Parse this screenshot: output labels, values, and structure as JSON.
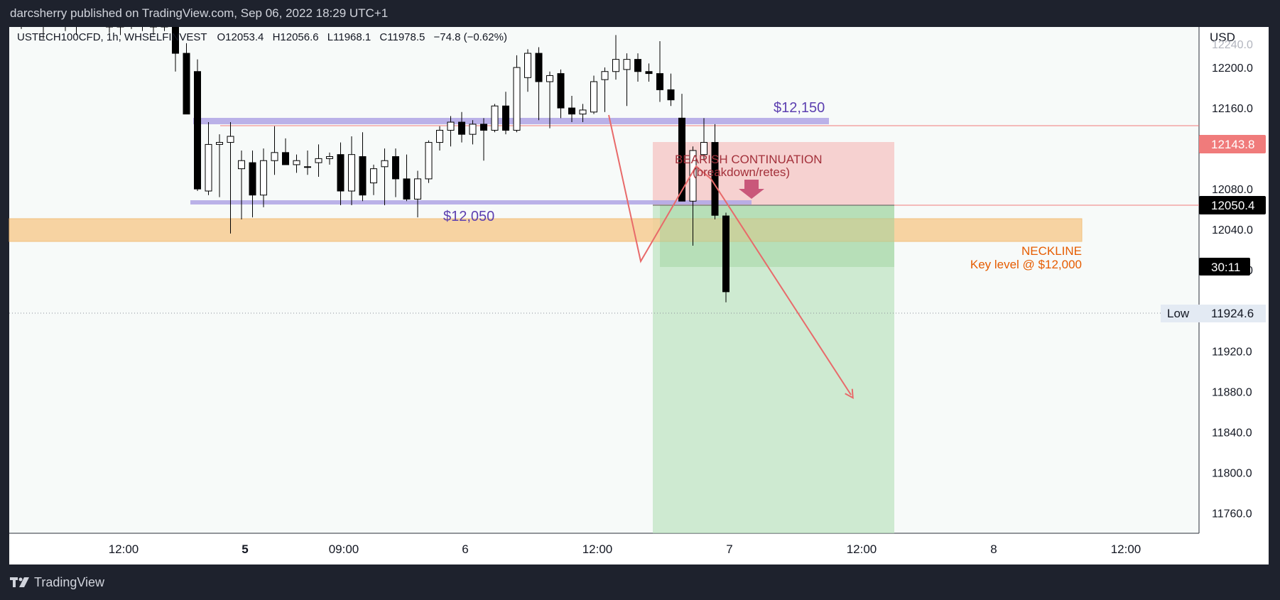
{
  "header": {
    "publisher_text": "darcsherry published on TradingView.com, Sep 06, 2022 18:29 UTC+1"
  },
  "symbol": {
    "name": "USTECH100CFD",
    "interval": "1h",
    "exchange": "WHSELFINVEST",
    "open": "O12053.4",
    "high": "H12056.6",
    "low": "L11968.1",
    "close": "C11978.5",
    "change": "−74.8 (−0.62%)"
  },
  "price_axis": {
    "currency": "USD",
    "ticks": [
      "12200.0",
      "12160.0",
      "12120.0",
      "12080.0",
      "12040.0",
      "12000.0",
      "11960.0",
      "11920.0",
      "11880.0",
      "11840.0",
      "11800.0",
      "11760.0"
    ],
    "top_partial_tick": "12240.0"
  },
  "price_badges": {
    "upper_line": "12143.8",
    "current_price": "12050.4",
    "countdown": "30:11",
    "low_label": "Low",
    "low_value": "11924.6"
  },
  "time_axis": {
    "labels": [
      "12:00",
      "5",
      "09:00",
      "6",
      "12:00",
      "7",
      "12:00",
      "8",
      "12:00"
    ]
  },
  "annotations": {
    "upper_zone_label": "$12,150",
    "lower_zone_label": "$12,050",
    "bearish_title": "BEARISH CONTINUATION",
    "bearish_subtitle": "(breakdown/retes)",
    "neckline_title": "NECKLINE",
    "neckline_subtitle": "Key level @ $12,000"
  },
  "colors": {
    "chart_bg": "#f7faf9",
    "frame_bg": "#1e222d",
    "candle_up": "#ffffff",
    "candle_down": "#000000",
    "zone_purple": "#b3a9e6",
    "neckline_orange": "#f7cd94",
    "loss_zone": "#f6c9c9",
    "profit_zone": "#b9e2bb",
    "arrow_red": "#e86a6a",
    "label_purple": "#5c3fb0",
    "label_orange": "#e65c00",
    "label_maroon": "#a3303a",
    "badge_red": "#f07b7b"
  },
  "chart_data": {
    "type": "candlestick",
    "x_categories": [
      "Sep 2 12:00",
      "Sep 5",
      "Sep 5 09:00",
      "Sep 6",
      "Sep 6 12:00",
      "Sep 7",
      "Sep 7 12:00",
      "Sep 8",
      "Sep 8 12:00"
    ],
    "y_range": [
      11740,
      12240
    ],
    "series": [
      {
        "values": [
          [
            12244,
            12252,
            12238,
            12250
          ],
          [
            12250,
            12256,
            12240,
            12245
          ],
          [
            12245,
            12262,
            12228,
            12258
          ],
          [
            12258,
            12270,
            12240,
            12248
          ],
          [
            12248,
            12258,
            12236,
            12242
          ],
          [
            12242,
            12260,
            12232,
            12252
          ],
          [
            12252,
            12262,
            12244,
            12256
          ],
          [
            12256,
            12264,
            12246,
            12250
          ],
          [
            12250,
            12260,
            12234,
            12240
          ],
          [
            12240,
            12256,
            12232,
            12246
          ],
          [
            12246,
            12262,
            12238,
            12258
          ],
          [
            12258,
            12266,
            12236,
            12246
          ],
          [
            12246,
            12252,
            12232,
            12240
          ],
          [
            12240,
            12252,
            12236,
            12248
          ],
          [
            12248,
            12256,
            12196,
            12214
          ],
          [
            12214,
            12224,
            12156,
            12154
          ],
          [
            12196,
            12208,
            12078,
            12080
          ],
          [
            12078,
            12146,
            12074,
            12124
          ],
          [
            12124,
            12134,
            12072,
            12126
          ],
          [
            12126,
            12146,
            12036,
            12132
          ],
          [
            12100,
            12118,
            12050,
            12108
          ],
          [
            12106,
            12118,
            12052,
            12074
          ],
          [
            12074,
            12120,
            12062,
            12108
          ],
          [
            12108,
            12142,
            12094,
            12116
          ],
          [
            12116,
            12130,
            12104,
            12104
          ],
          [
            12104,
            12114,
            12096,
            12108
          ],
          [
            12102,
            12118,
            12094,
            12102
          ],
          [
            12106,
            12124,
            12092,
            12110
          ],
          [
            12110,
            12116,
            12104,
            12112
          ],
          [
            12114,
            12126,
            12064,
            12078
          ],
          [
            12078,
            12132,
            12064,
            12114
          ],
          [
            12112,
            12136,
            12068,
            12074
          ],
          [
            12086,
            12104,
            12074,
            12100
          ],
          [
            12102,
            12120,
            12064,
            12108
          ],
          [
            12112,
            12120,
            12072,
            12090
          ],
          [
            12090,
            12114,
            12068,
            12070
          ],
          [
            12070,
            12098,
            12052,
            12090
          ],
          [
            12090,
            12128,
            12086,
            12126
          ],
          [
            12126,
            12142,
            12118,
            12138
          ],
          [
            12138,
            12152,
            12122,
            12146
          ],
          [
            12146,
            12156,
            12126,
            12134
          ],
          [
            12134,
            12148,
            12124,
            12144
          ],
          [
            12144,
            12150,
            12108,
            12138
          ],
          [
            12138,
            12164,
            12136,
            12162
          ],
          [
            12162,
            12176,
            12134,
            12138
          ],
          [
            12138,
            12212,
            12136,
            12200
          ],
          [
            12190,
            12218,
            12176,
            12214
          ],
          [
            12214,
            12220,
            12148,
            12186
          ],
          [
            12186,
            12196,
            12140,
            12192
          ],
          [
            12194,
            12198,
            12150,
            12160
          ],
          [
            12160,
            12172,
            12146,
            12154
          ],
          [
            12154,
            12164,
            12146,
            12158
          ],
          [
            12156,
            12192,
            12154,
            12186
          ],
          [
            12188,
            12200,
            12156,
            12196
          ],
          [
            12196,
            12232,
            12188,
            12208
          ],
          [
            12198,
            12214,
            12162,
            12208
          ],
          [
            12208,
            12214,
            12186,
            12196
          ],
          [
            12196,
            12204,
            12186,
            12194
          ],
          [
            12194,
            12226,
            12166,
            12178
          ],
          [
            12178,
            12194,
            12162,
            12168
          ],
          [
            12150,
            12174,
            12068,
            12068
          ],
          [
            12068,
            12122,
            12024,
            12118
          ],
          [
            12114,
            12150,
            12108,
            12126
          ],
          [
            12126,
            12144,
            12050,
            12054
          ],
          [
            12053.4,
            12056.6,
            11968.1,
            11978.5
          ]
        ]
      }
    ]
  }
}
